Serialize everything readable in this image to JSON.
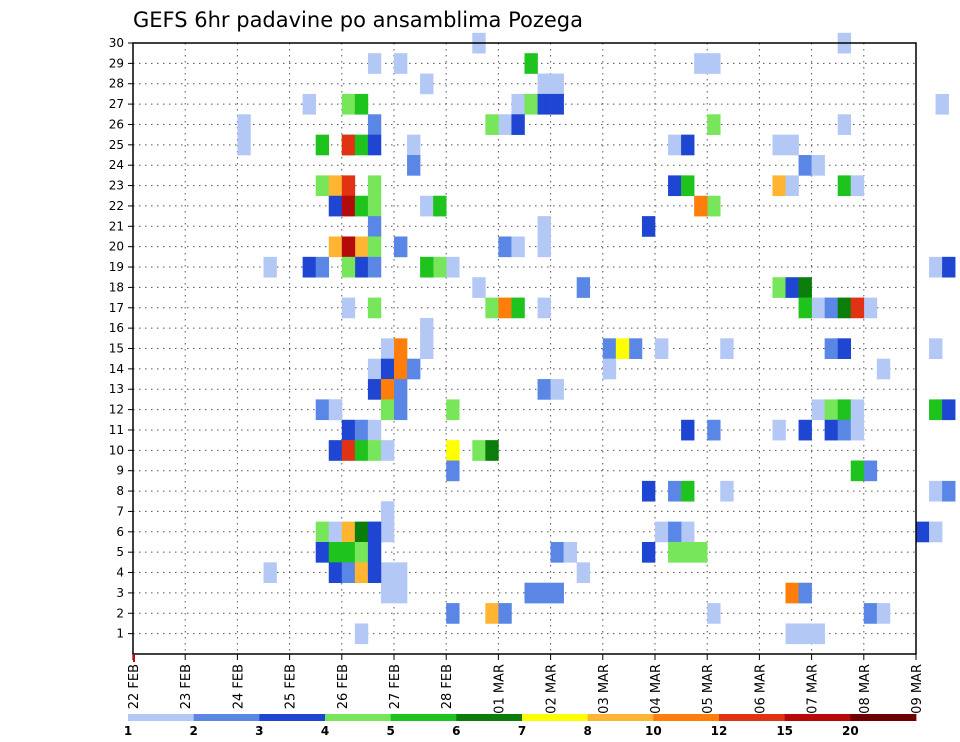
{
  "chart_data": {
    "type": "heatmap",
    "title": "GEFS 6hr padavine po ansamblima Pozega",
    "xlabel": "",
    "ylabel": "",
    "grid": true,
    "ylim": [
      0,
      30
    ],
    "xlim": [
      0,
      60
    ],
    "y_ticks": [
      1,
      2,
      3,
      4,
      5,
      6,
      7,
      8,
      9,
      10,
      11,
      12,
      13,
      14,
      15,
      16,
      17,
      18,
      19,
      20,
      21,
      22,
      23,
      24,
      25,
      26,
      27,
      28,
      29,
      30
    ],
    "x_ticks": [
      {
        "x": 0,
        "label": "22 FEB"
      },
      {
        "x": 4,
        "label": "23 FEB"
      },
      {
        "x": 8,
        "label": "24 FEB"
      },
      {
        "x": 12,
        "label": "25 FEB"
      },
      {
        "x": 16,
        "label": "26 FEB"
      },
      {
        "x": 20,
        "label": "27 FEB"
      },
      {
        "x": 24,
        "label": "28 FEB"
      },
      {
        "x": 28,
        "label": "01 MAR"
      },
      {
        "x": 32,
        "label": "02 MAR"
      },
      {
        "x": 36,
        "label": "03 MAR"
      },
      {
        "x": 40,
        "label": "04 MAR"
      },
      {
        "x": 44,
        "label": "05 MAR"
      },
      {
        "x": 48,
        "label": "06 MAR"
      },
      {
        "x": 52,
        "label": "07 MAR"
      },
      {
        "x": 56,
        "label": "08 MAR"
      },
      {
        "x": 60,
        "label": "09 MAR"
      }
    ],
    "legend": {
      "placement": "bottom",
      "labels": [
        "1",
        "2",
        "3",
        "4",
        "5",
        "6",
        "7",
        "8",
        "10",
        "12",
        "15",
        "20"
      ],
      "colors": [
        "#b4c8f5",
        "#5a87e6",
        "#1e46d2",
        "#78e65a",
        "#1ec31e",
        "#0a7d0a",
        "#ffff00",
        "#ffb432",
        "#ff7d0a",
        "#e13214",
        "#b40a0a",
        "#6e0000"
      ]
    },
    "cells": [
      {
        "m": 30,
        "s": [
          26.5,
          54.5
        ],
        "c": 1
      },
      {
        "m": 29,
        "s": [
          18.5,
          20.5,
          43.5,
          44.5
        ],
        "c": 1
      },
      {
        "m": 29,
        "s": [
          30.5
        ],
        "c": 5
      },
      {
        "m": 28,
        "s": [
          22.5,
          31.5,
          32.5
        ],
        "c": 1
      },
      {
        "m": 27,
        "s": [
          13.5,
          29.5,
          62
        ],
        "c": 1
      },
      {
        "m": 27,
        "s": [
          16.5,
          30.5
        ],
        "c": 4
      },
      {
        "m": 27,
        "s": [
          17.5
        ],
        "c": 5
      },
      {
        "m": 27,
        "s": [
          31.5,
          32.5
        ],
        "c": 3
      },
      {
        "m": 26,
        "s": [
          8.5,
          28.5,
          54.5
        ],
        "c": 1
      },
      {
        "m": 26,
        "s": [
          18.5
        ],
        "c": 2
      },
      {
        "m": 26,
        "s": [
          27.5,
          44.5
        ],
        "c": 4
      },
      {
        "m": 26,
        "s": [
          29.5
        ],
        "c": 3
      },
      {
        "m": 25,
        "s": [
          8.5,
          21.5,
          41.5,
          49.5,
          50.5
        ],
        "c": 1
      },
      {
        "m": 25,
        "s": [
          14.5,
          16.5
        ],
        "c": 5
      },
      {
        "m": 25,
        "s": [
          16.5
        ],
        "c": 10
      },
      {
        "m": 25,
        "s": [
          17.5
        ],
        "c": 5
      },
      {
        "m": 25,
        "s": [
          18.5,
          42.5
        ],
        "c": 3
      },
      {
        "m": 24,
        "s": [
          21.5,
          51.5
        ],
        "c": 2
      },
      {
        "m": 24,
        "s": [
          52.5
        ],
        "c": 1
      },
      {
        "m": 23,
        "s": [
          14.5,
          18.5
        ],
        "c": 4
      },
      {
        "m": 23,
        "s": [
          15.5,
          49.5
        ],
        "c": 8
      },
      {
        "m": 23,
        "s": [
          16.5
        ],
        "c": 10
      },
      {
        "m": 23,
        "s": [
          41.5
        ],
        "c": 3
      },
      {
        "m": 23,
        "s": [
          42.5,
          54.5
        ],
        "c": 5
      },
      {
        "m": 23,
        "s": [
          50.5,
          55.5
        ],
        "c": 1
      },
      {
        "m": 22,
        "s": [
          15.5
        ],
        "c": 3
      },
      {
        "m": 22,
        "s": [
          16.5
        ],
        "c": 11
      },
      {
        "m": 22,
        "s": [
          17.5
        ],
        "c": 5
      },
      {
        "m": 22,
        "s": [
          18.5,
          44.5
        ],
        "c": 4
      },
      {
        "m": 22,
        "s": [
          22.5
        ],
        "c": 1
      },
      {
        "m": 22,
        "s": [
          23.5
        ],
        "c": 5
      },
      {
        "m": 22,
        "s": [
          43.5
        ],
        "c": 9
      },
      {
        "m": 21,
        "s": [
          18.5
        ],
        "c": 2
      },
      {
        "m": 21,
        "s": [
          31.5
        ],
        "c": 1
      },
      {
        "m": 21,
        "s": [
          39.5
        ],
        "c": 3
      },
      {
        "m": 20,
        "s": [
          15.5,
          17.5
        ],
        "c": 8
      },
      {
        "m": 20,
        "s": [
          16.5
        ],
        "c": 11
      },
      {
        "m": 20,
        "s": [
          18.5,
          20.5
        ],
        "c": 4
      },
      {
        "m": 20,
        "s": [
          20.5,
          28.5
        ],
        "c": 2
      },
      {
        "m": 20,
        "s": [
          29.5,
          31.5
        ],
        "c": 1
      },
      {
        "m": 19,
        "s": [
          10.5,
          24.5,
          61.5
        ],
        "c": 1
      },
      {
        "m": 19,
        "s": [
          13.5,
          17.5
        ],
        "c": 3
      },
      {
        "m": 19,
        "s": [
          14.5,
          18.5
        ],
        "c": 2
      },
      {
        "m": 19,
        "s": [
          16.5,
          23.5
        ],
        "c": 4
      },
      {
        "m": 19,
        "s": [
          22.5
        ],
        "c": 5
      },
      {
        "m": 19,
        "s": [
          62.5
        ],
        "c": 3
      },
      {
        "m": 18,
        "s": [
          26.5
        ],
        "c": 1
      },
      {
        "m": 18,
        "s": [
          34.5
        ],
        "c": 2
      },
      {
        "m": 18,
        "s": [
          49.5
        ],
        "c": 4
      },
      {
        "m": 18,
        "s": [
          50.5
        ],
        "c": 3
      },
      {
        "m": 18,
        "s": [
          51.5
        ],
        "c": 6
      },
      {
        "m": 17,
        "s": [
          16.5,
          31.5,
          52.5,
          56.5
        ],
        "c": 1
      },
      {
        "m": 17,
        "s": [
          18.5,
          27.5
        ],
        "c": 4
      },
      {
        "m": 17,
        "s": [
          28.5
        ],
        "c": 9
      },
      {
        "m": 17,
        "s": [
          29.5,
          51.5
        ],
        "c": 5
      },
      {
        "m": 17,
        "s": [
          53.5
        ],
        "c": 2
      },
      {
        "m": 17,
        "s": [
          54.5
        ],
        "c": 6
      },
      {
        "m": 17,
        "s": [
          55.5
        ],
        "c": 10
      },
      {
        "m": 16,
        "s": [
          22.5
        ],
        "c": 1
      },
      {
        "m": 15,
        "s": [
          19.5,
          22.5,
          40.5,
          45.5,
          61.5
        ],
        "c": 1
      },
      {
        "m": 15,
        "s": [
          20.5
        ],
        "c": 9
      },
      {
        "m": 15,
        "s": [
          36.5,
          38.5,
          53.5
        ],
        "c": 2
      },
      {
        "m": 15,
        "s": [
          37.5
        ],
        "c": 7
      },
      {
        "m": 15,
        "s": [
          54.5
        ],
        "c": 3
      },
      {
        "m": 14,
        "s": [
          18.5,
          36.5,
          57.5
        ],
        "c": 1
      },
      {
        "m": 14,
        "s": [
          19.5
        ],
        "c": 3
      },
      {
        "m": 14,
        "s": [
          20.5
        ],
        "c": 9
      },
      {
        "m": 14,
        "s": [
          21.5
        ],
        "c": 2
      },
      {
        "m": 13,
        "s": [
          18.5
        ],
        "c": 3
      },
      {
        "m": 13,
        "s": [
          19.5
        ],
        "c": 9
      },
      {
        "m": 13,
        "s": [
          20.5,
          31.5
        ],
        "c": 2
      },
      {
        "m": 13,
        "s": [
          32.5
        ],
        "c": 1
      },
      {
        "m": 12,
        "s": [
          14.5,
          15.5
        ],
        "c": 2
      },
      {
        "m": 12,
        "s": [
          15.5,
          52.5,
          62
        ],
        "c": 1
      },
      {
        "m": 12,
        "s": [
          19.5,
          24.5,
          53.5
        ],
        "c": 4
      },
      {
        "m": 12,
        "s": [
          20.5
        ],
        "c": 2
      },
      {
        "m": 12,
        "s": [
          54.5
        ],
        "c": 5
      },
      {
        "m": 12,
        "s": [
          55.5
        ],
        "c": 1
      },
      {
        "m": 12,
        "s": [
          61.5
        ],
        "c": 5
      },
      {
        "m": 12,
        "s": [
          62.5
        ],
        "c": 3
      },
      {
        "m": 11,
        "s": [
          16.5,
          42.5,
          51.5,
          53.5
        ],
        "c": 3
      },
      {
        "m": 11,
        "s": [
          17.5,
          44.5,
          54.5
        ],
        "c": 2
      },
      {
        "m": 11,
        "s": [
          18.5,
          49.5,
          55.5
        ],
        "c": 1
      },
      {
        "m": 10,
        "s": [
          15.5
        ],
        "c": 3
      },
      {
        "m": 10,
        "s": [
          16.5
        ],
        "c": 10
      },
      {
        "m": 10,
        "s": [
          17.5
        ],
        "c": 5
      },
      {
        "m": 10,
        "s": [
          18.5
        ],
        "c": 4
      },
      {
        "m": 10,
        "s": [
          19.5
        ],
        "c": 1
      },
      {
        "m": 10,
        "s": [
          24.5
        ],
        "c": 7
      },
      {
        "m": 10,
        "s": [
          26.5
        ],
        "c": 4
      },
      {
        "m": 10,
        "s": [
          27.5
        ],
        "c": 6
      },
      {
        "m": 9,
        "s": [
          24.5,
          56.5
        ],
        "c": 2
      },
      {
        "m": 9,
        "s": [
          55.5
        ],
        "c": 5
      },
      {
        "m": 8,
        "s": [
          39.5
        ],
        "c": 3
      },
      {
        "m": 8,
        "s": [
          41.5
        ],
        "c": 2
      },
      {
        "m": 8,
        "s": [
          42.5
        ],
        "c": 5
      },
      {
        "m": 8,
        "s": [
          45.5,
          61.5
        ],
        "c": 1
      },
      {
        "m": 8,
        "s": [
          62.5
        ],
        "c": 2
      },
      {
        "m": 7,
        "s": [
          19.5
        ],
        "c": 1
      },
      {
        "m": 6,
        "s": [
          14.5,
          18.5
        ],
        "c": 4
      },
      {
        "m": 6,
        "s": [
          15.5,
          40.5,
          42.5,
          19.5
        ],
        "c": 1
      },
      {
        "m": 6,
        "s": [
          16.5
        ],
        "c": 8
      },
      {
        "m": 6,
        "s": [
          17.5
        ],
        "c": 6
      },
      {
        "m": 6,
        "s": [
          18.5
        ],
        "c": 3
      },
      {
        "m": 6,
        "s": [
          41.5
        ],
        "c": 2
      },
      {
        "m": 6,
        "s": [
          60.5
        ],
        "c": 3
      },
      {
        "m": 6,
        "s": [
          61.5
        ],
        "c": 1
      },
      {
        "m": 5,
        "s": [
          14.5
        ],
        "c": 3
      },
      {
        "m": 5,
        "s": [
          15.5,
          16.5
        ],
        "c": 5
      },
      {
        "m": 5,
        "s": [
          17.5
        ],
        "c": 4
      },
      {
        "m": 5,
        "s": [
          18.5,
          39.5
        ],
        "c": 3
      },
      {
        "m": 5,
        "s": [
          32.5
        ],
        "c": 2
      },
      {
        "m": 5,
        "s": [
          33.5
        ],
        "c": 1
      },
      {
        "m": 5,
        "s": [
          41.5,
          42.5,
          43.5
        ],
        "c": 4
      },
      {
        "m": 4,
        "s": [
          10.5,
          19.5,
          20.5,
          34.5
        ],
        "c": 1
      },
      {
        "m": 4,
        "s": [
          15.5
        ],
        "c": 3
      },
      {
        "m": 4,
        "s": [
          16.5
        ],
        "c": 2
      },
      {
        "m": 4,
        "s": [
          17.5
        ],
        "c": 8
      },
      {
        "m": 4,
        "s": [
          18.5
        ],
        "c": 3
      },
      {
        "m": 3,
        "s": [
          19.5,
          20.5
        ],
        "c": 1
      },
      {
        "m": 3,
        "s": [
          30.5,
          31.5,
          32.5
        ],
        "c": 2
      },
      {
        "m": 3,
        "s": [
          50.5
        ],
        "c": 9
      },
      {
        "m": 3,
        "s": [
          51.5
        ],
        "c": 2
      },
      {
        "m": 2,
        "s": [
          24.5,
          56.5
        ],
        "c": 2
      },
      {
        "m": 2,
        "s": [
          27.5
        ],
        "c": 8
      },
      {
        "m": 2,
        "s": [
          28.5
        ],
        "c": 2
      },
      {
        "m": 2,
        "s": [
          44.5,
          57.5
        ],
        "c": 1
      },
      {
        "m": 1,
        "s": [
          17.5,
          50.5,
          51.5,
          52.5
        ],
        "c": 1
      }
    ]
  }
}
